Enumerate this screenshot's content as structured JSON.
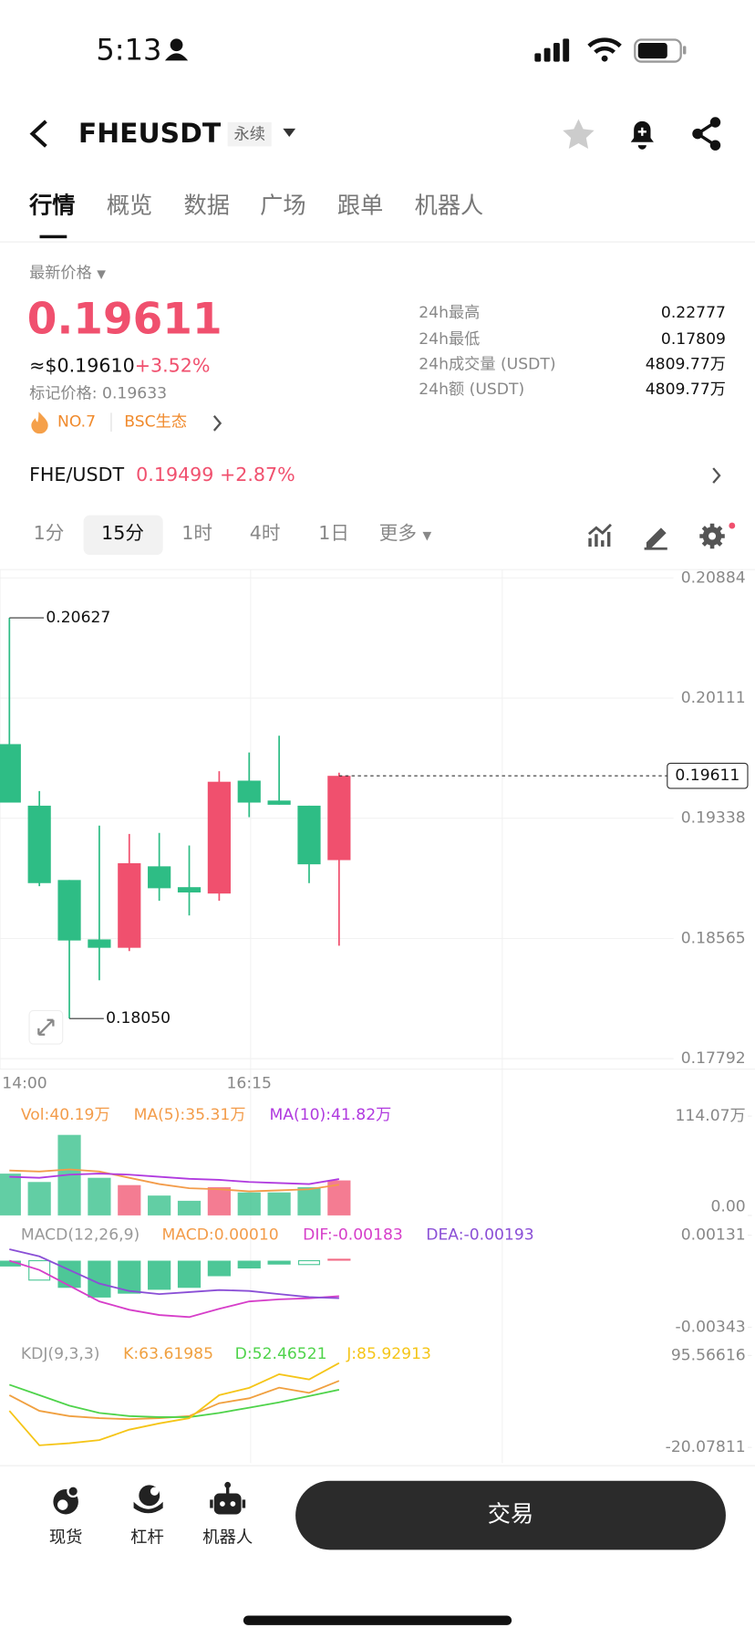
{
  "status_bar": {
    "time": "5:13"
  },
  "header": {
    "symbol": "FHEUSDT",
    "contract_tag": "永续"
  },
  "tabs": [
    "行情",
    "概览",
    "数据",
    "广场",
    "跟单",
    "机器人"
  ],
  "ticker": {
    "price_label": "最新价格",
    "last_price": "0.19611",
    "usd_price": "≈$0.19610",
    "change": "+3.52%",
    "mark_price": "标记价格: 0.19633",
    "rank": "NO.7",
    "sector": "BSC生态",
    "stats": [
      {
        "label": "24h最高",
        "value": "0.22777"
      },
      {
        "label": "24h最低",
        "value": "0.17809"
      },
      {
        "label": "24h成交量 (USDT)",
        "value": "4809.77万"
      },
      {
        "label": "24h额 (USDT)",
        "value": "4809.77万"
      }
    ]
  },
  "spot": {
    "pair": "FHE/USDT",
    "price": "0.19499",
    "change": "+2.87%"
  },
  "intervals": [
    "1分",
    "15分",
    "1时",
    "4时",
    "1日",
    "更多"
  ],
  "chart_data": [
    {
      "type": "candlestick",
      "categories": [
        "14:00",
        null,
        null,
        null,
        null,
        null,
        null,
        null,
        "16:15",
        null,
        null,
        null
      ],
      "open": [
        0.19815,
        0.19419,
        0.18941,
        0.18559,
        0.18505,
        0.19029,
        0.18895,
        0.18854,
        0.1958,
        0.19452,
        0.19419,
        0.19069
      ],
      "high": [
        0.20627,
        0.19513,
        0.18941,
        0.19291,
        0.19237,
        0.19244,
        0.19163,
        0.19641,
        0.19761,
        0.19869,
        0.19419,
        0.19631
      ],
      "low": [
        0.19439,
        0.18901,
        0.1805,
        0.18296,
        0.18484,
        0.18807,
        0.18713,
        0.18807,
        0.19345,
        0.19425,
        0.18921,
        0.18518
      ],
      "close": [
        0.19439,
        0.18921,
        0.18552,
        0.18505,
        0.19049,
        0.18888,
        0.18861,
        0.19573,
        0.19439,
        0.19425,
        0.19042,
        0.19611
      ],
      "up_color": "#f0506e",
      "down_color": "#2ebd85",
      "ylim": [
        0.17792,
        0.20884
      ],
      "yticks": [
        0.17792,
        0.18565,
        0.19338,
        0.20111,
        0.20884
      ],
      "grid": true,
      "last_price": 0.19611,
      "annotations": [
        {
          "value": 0.20627,
          "label": "0.20627"
        },
        {
          "value": 0.1805,
          "label": "0.18050"
        }
      ]
    },
    {
      "type": "bar",
      "legend": "Vol:40.19万",
      "legend_color": "#f39c4a",
      "values": [
        48,
        38.4,
        92.5,
        43.2,
        34.8,
        22.8,
        16.8,
        32.4,
        26.4,
        26.4,
        32.4,
        40.19
      ],
      "ylim": [
        0,
        114.07
      ],
      "yticks": [
        {
          "value": 114.07,
          "label": "114.07万"
        },
        {
          "value": 0,
          "label": "0.00"
        }
      ],
      "series": [
        {
          "legend": "MA(5):35.31万",
          "color": "#f39c4a",
          "values": [
            51.6,
            50.4,
            52.8,
            50.4,
            43.2,
            36,
            31.2,
            30,
            27.6,
            28.8,
            30,
            35.31
          ]
        },
        {
          "legend": "MA(10):41.82万",
          "color": "#b03adf",
          "values": [
            44.4,
            43.2,
            46.8,
            48,
            46.8,
            44.4,
            42,
            40.8,
            38.4,
            37.2,
            36,
            41.82
          ]
        }
      ]
    },
    {
      "type": "macd",
      "title": "MACD(12,26,9)",
      "legend": "MACD:0.00010",
      "legend_color": "#f39c4a",
      "values": [
        -0.0003,
        -0.001,
        -0.0014,
        -0.0019,
        -0.0017,
        -0.0015,
        -0.0014,
        -0.0008,
        -0.0004,
        -0.0002,
        -0.0002,
        0.0001
      ],
      "hollow": [
        false,
        true,
        false,
        false,
        false,
        false,
        false,
        false,
        false,
        false,
        true,
        false
      ],
      "ylim": [
        -0.00343,
        0.00131
      ],
      "yticks": [
        0.00131,
        -0.00343
      ],
      "series": [
        {
          "legend": "DIF:-0.00183",
          "color": "#d63ec9",
          "values": [
            0,
            -0.00048,
            -0.00129,
            -0.0021,
            -0.00253,
            -0.0028,
            -0.00291,
            -0.00248,
            -0.0021,
            -0.00199,
            -0.00194,
            -0.00183
          ]
        },
        {
          "legend": "DEA:-0.00193",
          "color": "#8a4fd6",
          "values": [
            0.00059,
            0.00022,
            -0.00048,
            -0.00118,
            -0.00156,
            -0.00172,
            -0.00162,
            -0.00151,
            -0.00156,
            -0.00172,
            -0.00188,
            -0.00193
          ]
        }
      ]
    },
    {
      "type": "line",
      "title": "KDJ(9,3,3)",
      "ylim": [
        -20.07811,
        95.56616
      ],
      "yticks": [
        95.56616,
        -20.07811
      ],
      "series": [
        {
          "legend": "K:63.61985",
          "color": "#f0a040",
          "values": [
            45.6,
            25.9,
            19.4,
            16.7,
            15.4,
            16.7,
            19.4,
            35.5,
            41.7,
            55.1,
            48.5,
            63.61985
          ]
        },
        {
          "legend": "D:52.46521",
          "color": "#4fd34b",
          "values": [
            58.8,
            45.6,
            32.5,
            23.3,
            19.4,
            18,
            18,
            23.3,
            29.9,
            36.5,
            44.4,
            52.46521
          ]
        },
        {
          "legend": "J:85.92913",
          "color": "#f5c518",
          "values": [
            25.9,
            -17.4,
            -14.8,
            -10.9,
            2.3,
            10.2,
            16.7,
            45.6,
            54.8,
            71.9,
            65.3,
            85.92913
          ]
        }
      ]
    }
  ],
  "bottom_nav": {
    "items": [
      "现货",
      "杠杆",
      "机器人"
    ],
    "trade_button": "交易"
  }
}
